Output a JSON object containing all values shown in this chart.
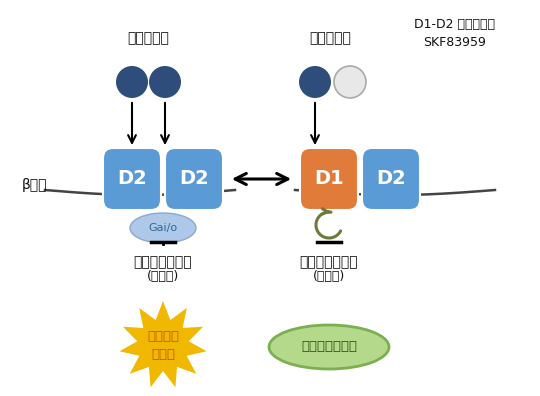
{
  "bg_color": "#ffffff",
  "d2_blue": "#5b9bd5",
  "d1_orange": "#e07b39",
  "gai_color": "#adc8e8",
  "dopamine_dark": "#2e4d7b",
  "arrow_color": "#333333",
  "curl_color": "#6b7c3a",
  "star_color": "#f0b800",
  "ellipse_green_border": "#7ab050",
  "ellipse_green_fill": "#b5d98a",
  "text_color": "#111111",
  "star_text_color": "#cc5500",
  "title_left": "ドーパミン",
  "title_right": "ドーパミン",
  "title_topright_line1": "D1-D2 アゴニスト",
  "title_topright_line2": "SKF83959",
  "beta_cell_label": "β細胞",
  "d2_label": "D2",
  "d1_label": "D1",
  "gai_label": "Gai/o",
  "insulin_left_line1": "インスリン分泌",
  "insulin_left_line2": "(持続的)",
  "insulin_right_line1": "インスリン分泌",
  "insulin_right_line2": "(一時的)",
  "star_text_line1": "機能不全",
  "star_text_line2": "細胞死",
  "brake_text": "適切なブレーキ",
  "figw": 5.4,
  "figh": 3.96,
  "dpi": 100
}
